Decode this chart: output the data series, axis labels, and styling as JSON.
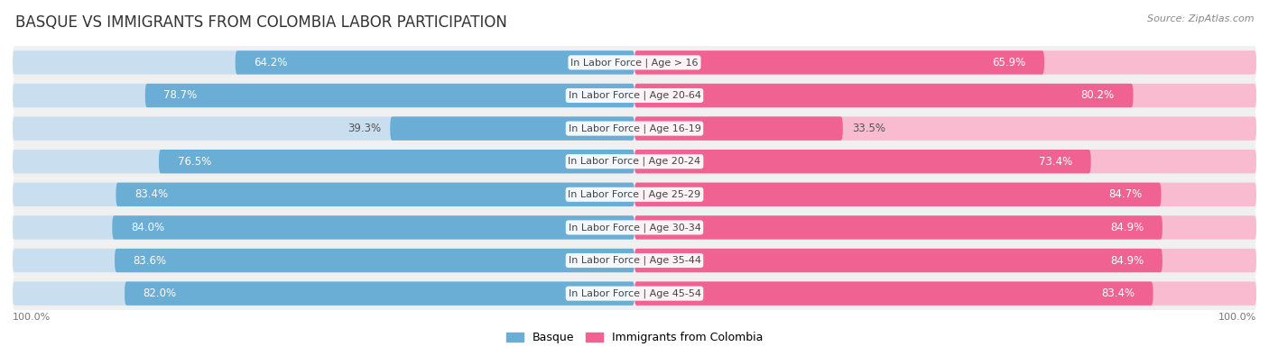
{
  "title": "BASQUE VS IMMIGRANTS FROM COLOMBIA LABOR PARTICIPATION",
  "source": "Source: ZipAtlas.com",
  "categories": [
    "In Labor Force | Age > 16",
    "In Labor Force | Age 20-64",
    "In Labor Force | Age 16-19",
    "In Labor Force | Age 20-24",
    "In Labor Force | Age 25-29",
    "In Labor Force | Age 30-34",
    "In Labor Force | Age 35-44",
    "In Labor Force | Age 45-54"
  ],
  "basque_values": [
    64.2,
    78.7,
    39.3,
    76.5,
    83.4,
    84.0,
    83.6,
    82.0
  ],
  "colombia_values": [
    65.9,
    80.2,
    33.5,
    73.4,
    84.7,
    84.9,
    84.9,
    83.4
  ],
  "basque_color": "#6aadd5",
  "basque_color_light": "#c9dff0",
  "colombia_color": "#f06292",
  "colombia_color_light": "#f8bbd0",
  "row_bg_color": "#f0f0f0",
  "row_bg_alt": "#e8e8e8",
  "max_value": 100.0,
  "legend_basque": "Basque",
  "legend_colombia": "Immigrants from Colombia",
  "axis_label_left": "100.0%",
  "axis_label_right": "100.0%",
  "title_fontsize": 12,
  "source_fontsize": 8,
  "value_fontsize": 8.5,
  "category_fontsize": 8,
  "legend_fontsize": 9
}
